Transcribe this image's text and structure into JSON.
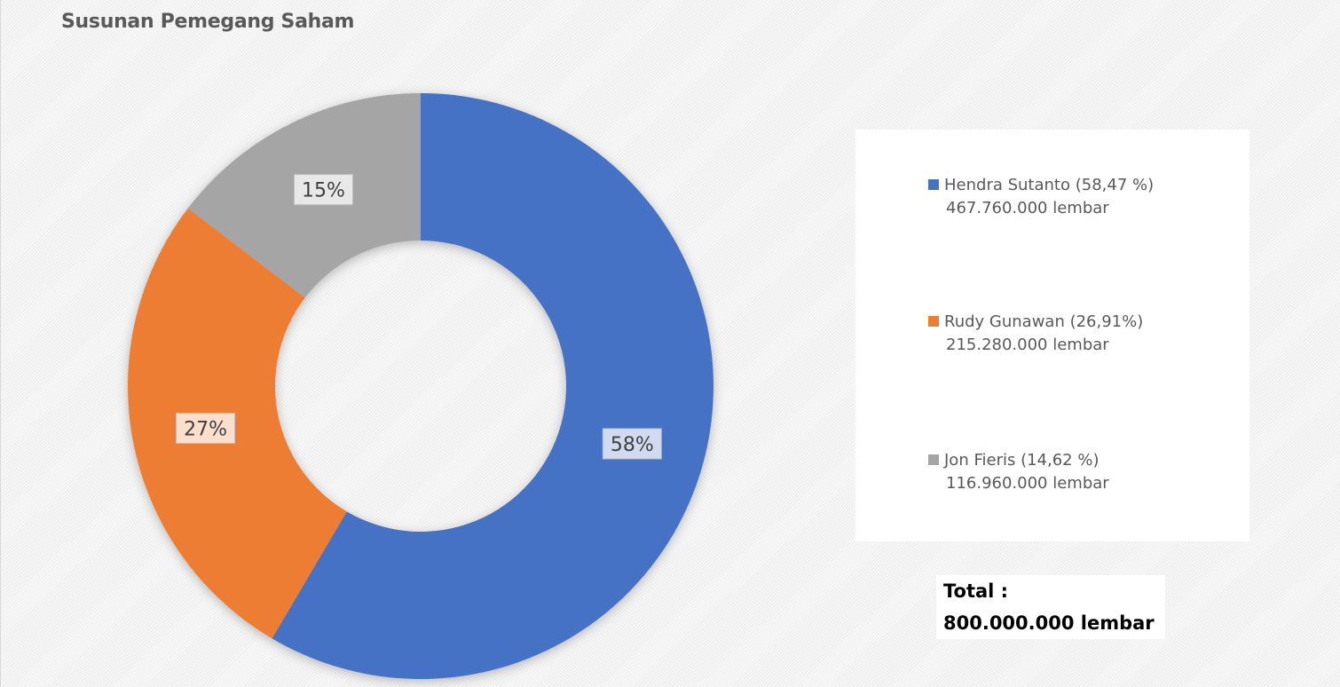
{
  "chart_data": {
    "type": "pie",
    "variant": "donut",
    "title": "Susunan Pemegang Saham",
    "categories": [
      "Hendra Sutanto",
      "Rudy Gunawan",
      "Jon Fieris"
    ],
    "values": [
      58.47,
      26.91,
      14.62
    ],
    "data_labels": [
      "58%",
      "27%",
      "15%"
    ],
    "colors": [
      "#4472C4",
      "#ED7D31",
      "#A5A5A5"
    ],
    "legend_placement": "right",
    "legend": [
      {
        "name": "Hendra Sutanto  (58,47 %)",
        "shares": "467.760.000  lembar"
      },
      {
        "name": "Rudy Gunawan  (26,91%)",
        "shares": "215.280.000  lembar"
      },
      {
        "name": "Jon Fieris  (14,62 %)",
        "shares": "116.960.000  lembar"
      }
    ],
    "total_label": "Total :",
    "total_value": "800.000.000 lembar"
  }
}
